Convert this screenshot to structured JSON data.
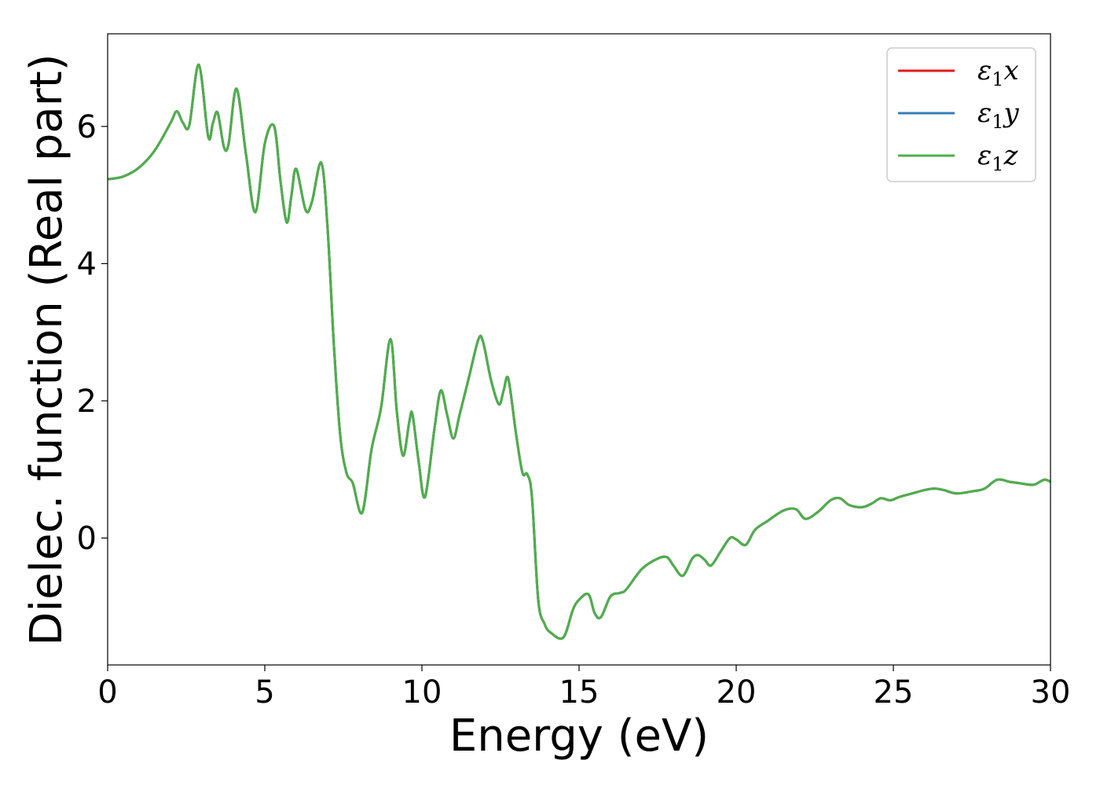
{
  "chart_data": {
    "type": "line",
    "title": "",
    "xlabel": "Energy (eV)",
    "ylabel": "Dielec. function (Real part)",
    "xlim": [
      0,
      30
    ],
    "ylim": [
      -1.85,
      7.35
    ],
    "xticks": [
      0,
      5,
      10,
      15,
      20,
      25,
      30
    ],
    "xtick_labels": [
      "0",
      "5",
      "10",
      "15",
      "20",
      "25",
      "30"
    ],
    "yticks": [
      0,
      2,
      4,
      6
    ],
    "ytick_labels": [
      "0",
      "2",
      "4",
      "6"
    ],
    "grid": false,
    "legend": {
      "position": "top-right",
      "entries": [
        {
          "symbol": "ε",
          "sub": "1",
          "axis": "x",
          "color": "#e41a1c"
        },
        {
          "symbol": "ε",
          "sub": "1",
          "axis": "y",
          "color": "#377eb8"
        },
        {
          "symbol": "ε",
          "sub": "1",
          "axis": "z",
          "color": "#4daf4a"
        }
      ]
    },
    "series_x": [
      0,
      0.5,
      1.0,
      1.5,
      2.0,
      2.2,
      2.4,
      2.6,
      2.9,
      3.2,
      3.35,
      3.5,
      3.7,
      3.85,
      4.1,
      4.4,
      4.7,
      5.0,
      5.3,
      5.5,
      5.7,
      5.85,
      6.0,
      6.3,
      6.5,
      6.8,
      7.0,
      7.2,
      7.4,
      7.6,
      7.8,
      8.1,
      8.4,
      8.7,
      9.0,
      9.2,
      9.4,
      9.6,
      9.7,
      9.9,
      10.1,
      10.4,
      10.6,
      10.8,
      11.0,
      11.2,
      11.5,
      11.8,
      11.95,
      12.2,
      12.45,
      12.6,
      12.75,
      13.0,
      13.2,
      13.35,
      13.5,
      13.7,
      13.9,
      14.1,
      14.5,
      14.8,
      15.0,
      15.3,
      15.5,
      15.7,
      16.0,
      16.3,
      16.5,
      17.0,
      17.5,
      17.8,
      18.0,
      18.3,
      18.6,
      18.8,
      19.0,
      19.2,
      19.5,
      19.8,
      20.0,
      20.3,
      20.6,
      21.0,
      21.5,
      21.9,
      22.2,
      22.6,
      23.0,
      23.3,
      23.6,
      24.0,
      24.3,
      24.6,
      24.9,
      25.2,
      25.6,
      26.0,
      26.3,
      26.6,
      27.0,
      27.5,
      27.9,
      28.3,
      28.7,
      29.0,
      29.3,
      29.5,
      29.8,
      30.0
    ],
    "series_y": [
      5.23,
      5.27,
      5.4,
      5.65,
      6.05,
      6.22,
      6.05,
      6.02,
      6.9,
      5.85,
      6.05,
      6.2,
      5.7,
      5.75,
      6.55,
      5.6,
      4.75,
      5.75,
      6.0,
      5.2,
      4.6,
      5.0,
      5.38,
      4.78,
      4.9,
      5.47,
      4.5,
      2.8,
      1.5,
      0.95,
      0.8,
      0.37,
      1.3,
      1.9,
      2.9,
      1.85,
      1.2,
      1.7,
      1.8,
      1.1,
      0.6,
      1.6,
      2.15,
      1.8,
      1.45,
      1.8,
      2.35,
      2.9,
      2.85,
      2.3,
      1.95,
      2.15,
      2.32,
      1.5,
      0.95,
      0.93,
      0.6,
      -0.9,
      -1.25,
      -1.38,
      -1.45,
      -1.05,
      -0.9,
      -0.82,
      -1.1,
      -1.15,
      -0.85,
      -0.8,
      -0.75,
      -0.45,
      -0.3,
      -0.28,
      -0.4,
      -0.55,
      -0.3,
      -0.25,
      -0.32,
      -0.4,
      -0.2,
      0.0,
      -0.02,
      -0.1,
      0.12,
      0.25,
      0.4,
      0.42,
      0.28,
      0.38,
      0.55,
      0.58,
      0.48,
      0.45,
      0.5,
      0.58,
      0.55,
      0.6,
      0.65,
      0.7,
      0.72,
      0.7,
      0.65,
      0.68,
      0.72,
      0.85,
      0.82,
      0.8,
      0.78,
      0.78,
      0.85,
      0.82
    ]
  }
}
